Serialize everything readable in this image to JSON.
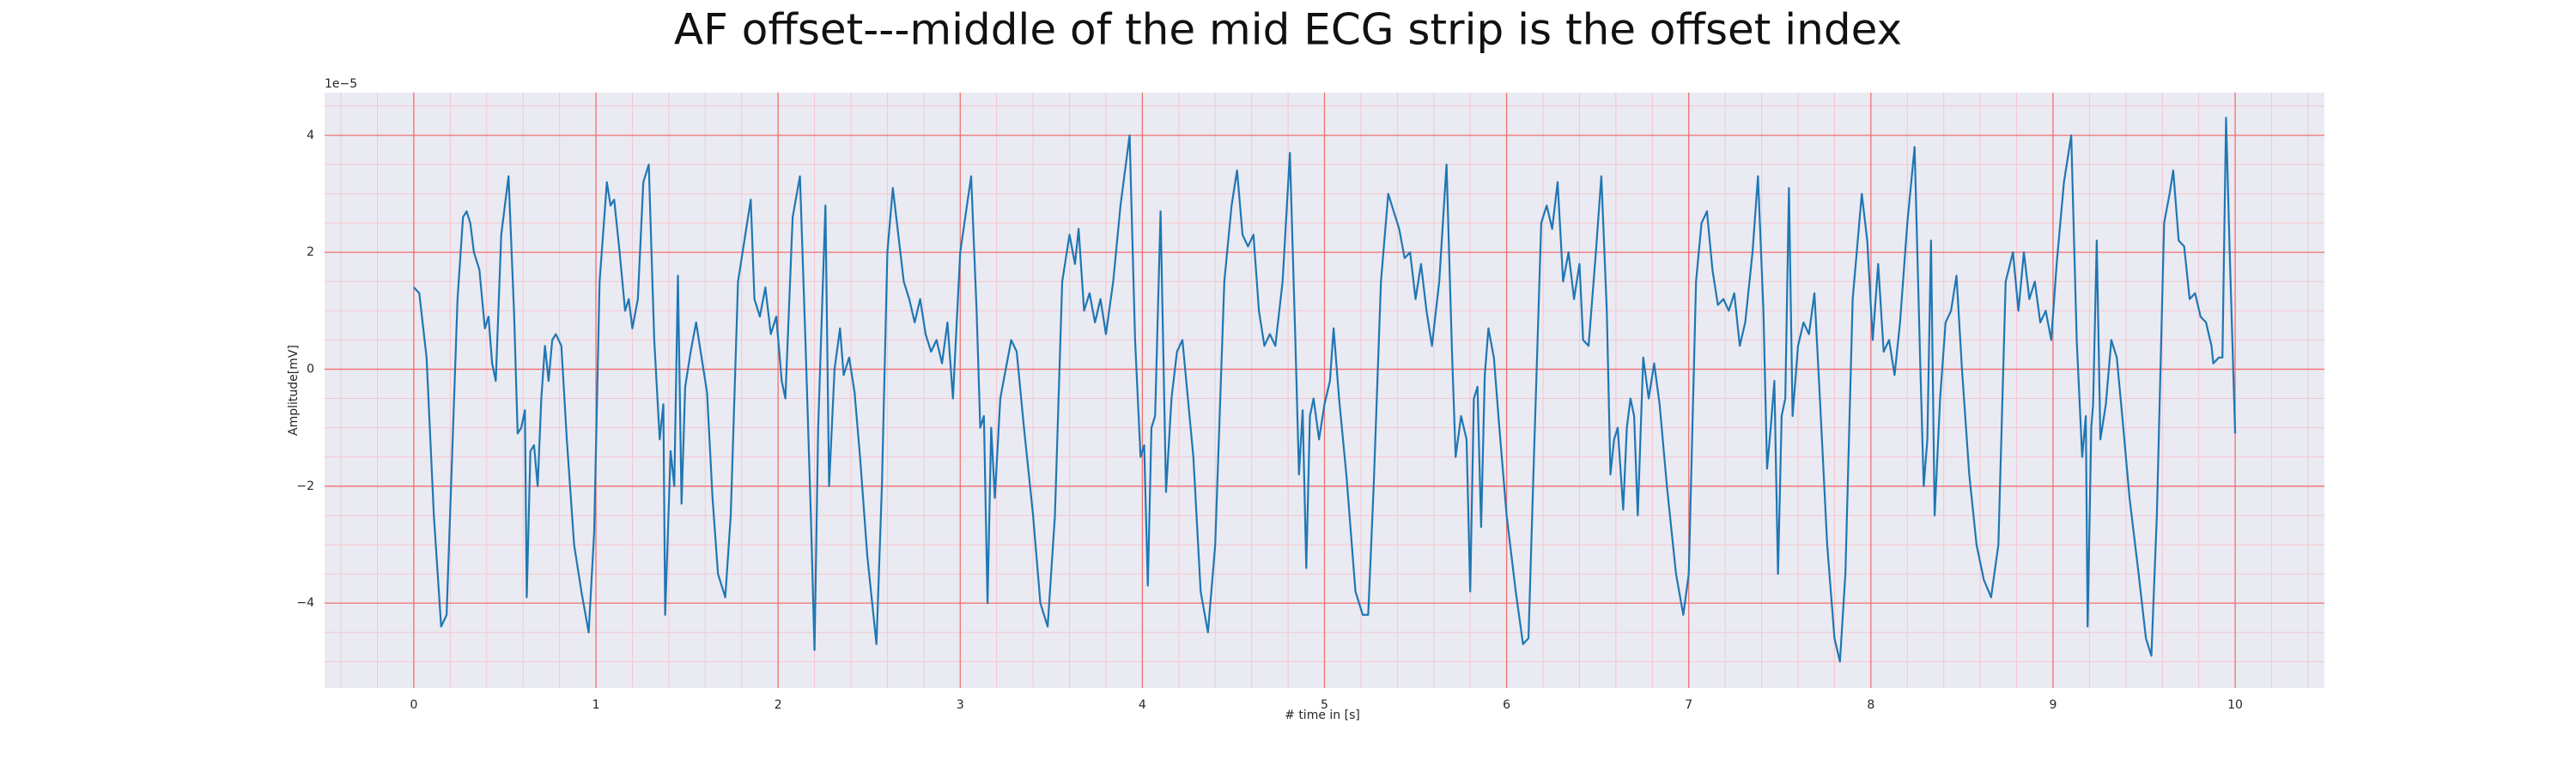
{
  "chart_data": {
    "type": "line",
    "title": "AF offset---middle of the mid ECG strip is the offset index",
    "xlabel": "# time in [s]",
    "ylabel": "Amplitude[mV]",
    "y_offset_text": "1e−5",
    "color": "#1f77b4",
    "grid": true,
    "minor_grid": true,
    "grid_color": "#f07070",
    "minor_grid_color": "#f5c6cf",
    "background": "#eaeaf2",
    "xlim": [
      -0.49,
      10.49
    ],
    "ylim": [
      -5.45,
      4.73
    ],
    "xticks": [
      0,
      1,
      2,
      3,
      4,
      5,
      6,
      7,
      8,
      9,
      10
    ],
    "yticks": [
      {
        "value": -4,
        "label": "−4"
      },
      {
        "value": -2,
        "label": "−2"
      },
      0,
      2,
      4
    ],
    "x": [
      0,
      0.03,
      0.07,
      0.11,
      0.15,
      0.18,
      0.21,
      0.24,
      0.27,
      0.29,
      0.31,
      0.33,
      0.36,
      0.39,
      0.41,
      0.43,
      0.45,
      0.48,
      0.52,
      0.55,
      0.57,
      0.59,
      0.61,
      0.62,
      0.64,
      0.66,
      0.68,
      0.7,
      0.72,
      0.74,
      0.76,
      0.78,
      0.81,
      0.84,
      0.88,
      0.92,
      0.96,
      0.99,
      1.02,
      1.06,
      1.08,
      1.1,
      1.13,
      1.16,
      1.18,
      1.2,
      1.23,
      1.26,
      1.29,
      1.32,
      1.35,
      1.37,
      1.38,
      1.41,
      1.43,
      1.45,
      1.47,
      1.49,
      1.52,
      1.55,
      1.58,
      1.61,
      1.64,
      1.67,
      1.71,
      1.74,
      1.78,
      1.82,
      1.85,
      1.87,
      1.9,
      1.93,
      1.96,
      1.99,
      2.02,
      2.04,
      2.08,
      2.12,
      2.15,
      2.18,
      2.2,
      2.22,
      2.26,
      2.28,
      2.31,
      2.34,
      2.36,
      2.39,
      2.42,
      2.45,
      2.49,
      2.54,
      2.57,
      2.6,
      2.63,
      2.66,
      2.69,
      2.72,
      2.75,
      2.78,
      2.81,
      2.84,
      2.87,
      2.9,
      2.93,
      2.96,
      3.0,
      3.06,
      3.09,
      3.11,
      3.13,
      3.15,
      3.17,
      3.19,
      3.22,
      3.25,
      3.28,
      3.31,
      3.35,
      3.4,
      3.44,
      3.48,
      3.52,
      3.56,
      3.6,
      3.63,
      3.65,
      3.68,
      3.71,
      3.74,
      3.77,
      3.8,
      3.84,
      3.88,
      3.93,
      3.96,
      3.99,
      4.01,
      4.03,
      4.05,
      4.07,
      4.1,
      4.13,
      4.16,
      4.19,
      4.22,
      4.25,
      4.28,
      4.32,
      4.36,
      4.4,
      4.45,
      4.49,
      4.52,
      4.55,
      4.58,
      4.61,
      4.64,
      4.67,
      4.7,
      4.73,
      4.77,
      4.81,
      4.84,
      4.86,
      4.88,
      4.9,
      4.92,
      4.94,
      4.97,
      5.0,
      5.03,
      5.05,
      5.08,
      5.12,
      5.17,
      5.21,
      5.24,
      5.27,
      5.31,
      5.35,
      5.38,
      5.41,
      5.44,
      5.47,
      5.5,
      5.53,
      5.56,
      5.59,
      5.63,
      5.67,
      5.7,
      5.72,
      5.75,
      5.78,
      5.8,
      5.82,
      5.84,
      5.86,
      5.88,
      5.9,
      5.93,
      5.96,
      6.0,
      6.05,
      6.09,
      6.12,
      6.15,
      6.19,
      6.22,
      6.25,
      6.28,
      6.31,
      6.34,
      6.37,
      6.4,
      6.42,
      6.45,
      6.49,
      6.52,
      6.55,
      6.57,
      6.59,
      6.61,
      6.64,
      6.66,
      6.68,
      6.7,
      6.72,
      6.75,
      6.78,
      6.81,
      6.84,
      6.88,
      6.93,
      6.97,
      7.0,
      7.04,
      7.07,
      7.1,
      7.13,
      7.16,
      7.19,
      7.22,
      7.25,
      7.28,
      7.31,
      7.35,
      7.38,
      7.41,
      7.43,
      7.45,
      7.47,
      7.49,
      7.51,
      7.53,
      7.55,
      7.57,
      7.6,
      7.63,
      7.66,
      7.69,
      7.72,
      7.76,
      7.8,
      7.83,
      7.86,
      7.9,
      7.95,
      7.98,
      8.01,
      8.04,
      8.07,
      8.1,
      8.13,
      8.16,
      8.2,
      8.24,
      8.27,
      8.29,
      8.31,
      8.33,
      8.35,
      8.38,
      8.41,
      8.44,
      8.47,
      8.5,
      8.54,
      8.58,
      8.62,
      8.66,
      8.7,
      8.74,
      8.78,
      8.81,
      8.84,
      8.87,
      8.9,
      8.93,
      8.96,
      8.99,
      9.02,
      9.06,
      9.1,
      9.13,
      9.16,
      9.18,
      9.19,
      9.21,
      9.22,
      9.24,
      9.26,
      9.29,
      9.32,
      9.35,
      9.38,
      9.42,
      9.47,
      9.51,
      9.54,
      9.57,
      9.61,
      9.64,
      9.66,
      9.69,
      9.72,
      9.75,
      9.78,
      9.81,
      9.84,
      9.87,
      9.88,
      9.91,
      9.93,
      9.95,
      9.97,
      10.0
    ],
    "values": [
      1.4,
      1.3,
      0.2,
      -2.5,
      -4.4,
      -4.2,
      -1.5,
      1.2,
      2.6,
      2.7,
      2.5,
      2.0,
      1.7,
      0.7,
      0.9,
      0.1,
      -0.2,
      2.3,
      3.3,
      1.0,
      -1.1,
      -1.0,
      -0.7,
      -3.9,
      -1.4,
      -1.3,
      -2.0,
      -0.5,
      0.4,
      -0.2,
      0.5,
      0.6,
      0.4,
      -1.2,
      -3.0,
      -3.8,
      -4.5,
      -2.8,
      1.5,
      3.2,
      2.8,
      2.9,
      2.0,
      1.0,
      1.2,
      0.7,
      1.2,
      3.2,
      3.5,
      0.5,
      -1.2,
      -0.6,
      -4.2,
      -1.4,
      -2.0,
      1.6,
      -2.3,
      -0.3,
      0.3,
      0.8,
      0.2,
      -0.4,
      -2.2,
      -3.5,
      -3.9,
      -2.5,
      1.5,
      2.3,
      2.9,
      1.2,
      0.9,
      1.4,
      0.6,
      0.9,
      -0.2,
      -0.5,
      2.6,
      3.3,
      0.5,
      -2.5,
      -4.8,
      -1.0,
      2.8,
      -2.0,
      0.0,
      0.7,
      -0.1,
      0.2,
      -0.4,
      -1.5,
      -3.2,
      -4.7,
      -2.0,
      2.0,
      3.1,
      2.3,
      1.5,
      1.2,
      0.8,
      1.2,
      0.6,
      0.3,
      0.5,
      0.1,
      0.8,
      -0.5,
      2.0,
      3.3,
      1.0,
      -1.0,
      -0.8,
      -4.0,
      -1.0,
      -2.2,
      -0.5,
      0.0,
      0.5,
      0.3,
      -1.0,
      -2.5,
      -4.0,
      -4.4,
      -2.5,
      1.5,
      2.3,
      1.8,
      2.4,
      1.0,
      1.3,
      0.8,
      1.2,
      0.6,
      1.5,
      2.8,
      4.0,
      0.5,
      -1.5,
      -1.3,
      -3.7,
      -1.0,
      -0.8,
      2.7,
      -2.1,
      -0.5,
      0.3,
      0.5,
      -0.5,
      -1.5,
      -3.8,
      -4.5,
      -3.0,
      1.5,
      2.8,
      3.4,
      2.3,
      2.1,
      2.3,
      1.0,
      0.4,
      0.6,
      0.4,
      1.5,
      3.7,
      0.5,
      -1.8,
      -0.7,
      -3.4,
      -0.8,
      -0.5,
      -1.2,
      -0.6,
      -0.2,
      0.7,
      -0.5,
      -1.8,
      -3.8,
      -4.2,
      -4.2,
      -2.0,
      1.5,
      3.0,
      2.7,
      2.4,
      1.9,
      2.0,
      1.2,
      1.8,
      1.0,
      0.4,
      1.5,
      3.5,
      0.3,
      -1.5,
      -0.8,
      -1.2,
      -3.8,
      -0.5,
      -0.3,
      -2.7,
      -0.1,
      0.7,
      0.2,
      -1.0,
      -2.5,
      -3.8,
      -4.7,
      -4.6,
      -1.5,
      2.5,
      2.8,
      2.4,
      3.2,
      1.5,
      2.0,
      1.2,
      1.8,
      0.5,
      0.4,
      2.0,
      3.3,
      1.0,
      -1.8,
      -1.2,
      -1.0,
      -2.4,
      -1.0,
      -0.5,
      -0.8,
      -2.5,
      0.2,
      -0.5,
      0.1,
      -0.6,
      -2.0,
      -3.5,
      -4.2,
      -3.5,
      1.5,
      2.5,
      2.7,
      1.7,
      1.1,
      1.2,
      1.0,
      1.3,
      0.4,
      0.8,
      2.0,
      3.3,
      1.0,
      -1.7,
      -1.0,
      -0.2,
      -3.5,
      -0.8,
      -0.5,
      3.1,
      -0.8,
      0.4,
      0.8,
      0.6,
      1.3,
      -0.5,
      -3.0,
      -4.6,
      -5.0,
      -3.5,
      1.2,
      3.0,
      2.2,
      0.5,
      1.8,
      0.3,
      0.5,
      -0.1,
      0.8,
      2.5,
      3.8,
      0.2,
      -2.0,
      -1.2,
      2.2,
      -2.5,
      -0.5,
      0.8,
      1.0,
      1.6,
      0.0,
      -1.8,
      -3.0,
      -3.6,
      -3.9,
      -3.0,
      1.5,
      2.0,
      1.0,
      2.0,
      1.2,
      1.5,
      0.8,
      1.0,
      0.5,
      1.8,
      3.2,
      4.0,
      0.5,
      -1.5,
      -0.8,
      -4.4,
      -1.0,
      -0.6,
      2.2,
      -1.2,
      -0.6,
      0.5,
      0.2,
      -0.8,
      -2.2,
      -3.5,
      -4.6,
      -4.9,
      -2.5,
      2.5,
      3.0,
      3.4,
      2.2,
      2.1,
      1.2,
      1.3,
      0.9,
      0.8,
      0.4,
      0.1,
      0.2,
      0.2,
      4.3,
      2.0,
      -1.1
    ]
  }
}
